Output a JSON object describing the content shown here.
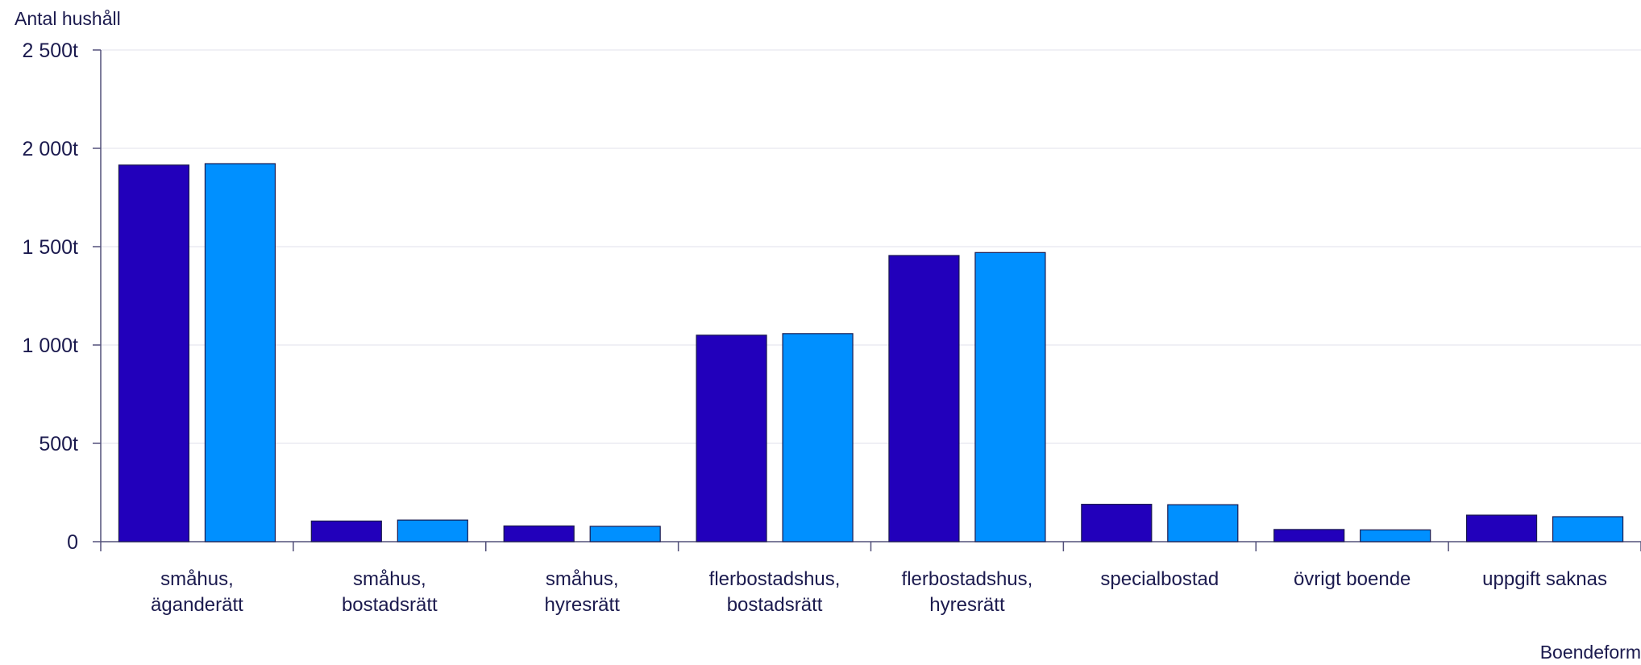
{
  "chart_data": {
    "type": "bar",
    "ylabel": "Antal hushåll",
    "xlabel": "Boendeform",
    "ylim": [
      0,
      2500
    ],
    "yticks": [
      {
        "value": 0,
        "label": "0"
      },
      {
        "value": 500,
        "label": "500t"
      },
      {
        "value": 1000,
        "label": "1 000t"
      },
      {
        "value": 1500,
        "label": "1 500t"
      },
      {
        "value": 2000,
        "label": "2 000t"
      },
      {
        "value": 2500,
        "label": "2 500t"
      }
    ],
    "categories": [
      [
        "småhus,",
        "äganderätt"
      ],
      [
        "småhus,",
        "bostadsrätt"
      ],
      [
        "småhus,",
        "hyresrätt"
      ],
      [
        "flerbostadshus,",
        "bostadsrätt"
      ],
      [
        "flerbostadshus,",
        "hyresrätt"
      ],
      [
        "specialbostad"
      ],
      [
        "övrigt boende"
      ],
      [
        "uppgift saknas"
      ]
    ],
    "series": [
      {
        "color": "#2200bb",
        "values": [
          1915,
          105,
          80,
          1050,
          1455,
          190,
          62,
          135
        ]
      },
      {
        "color": "#0090ff",
        "values": [
          1922,
          110,
          78,
          1058,
          1470,
          188,
          60,
          127
        ]
      }
    ],
    "grid": true,
    "legend": "none"
  }
}
